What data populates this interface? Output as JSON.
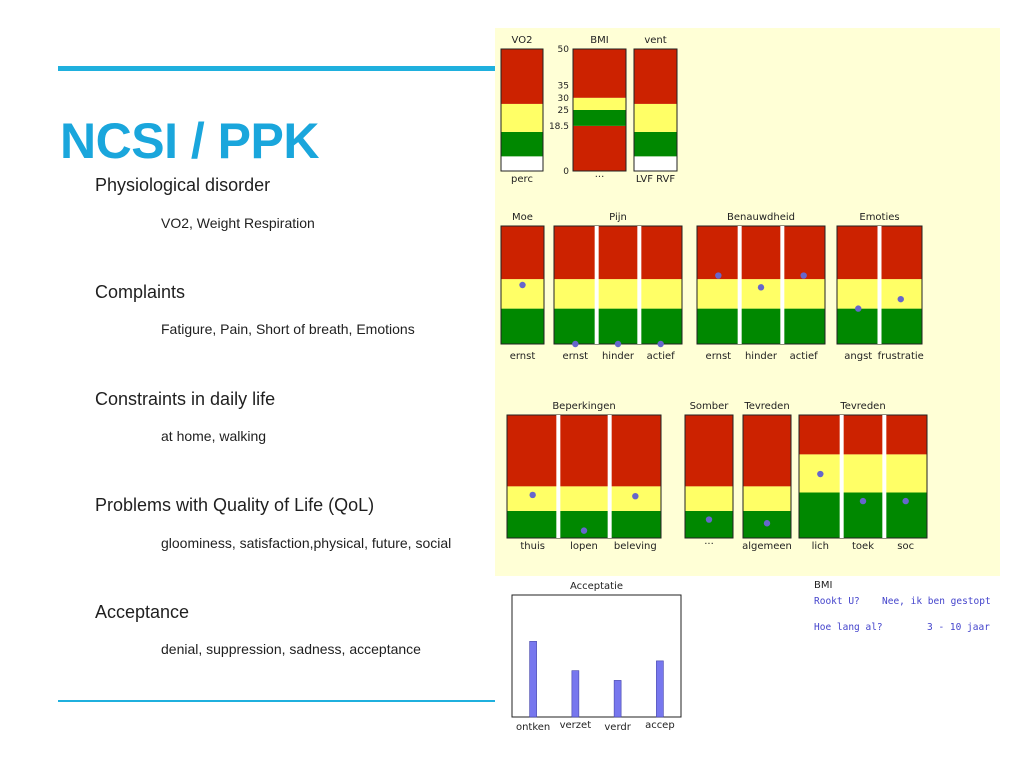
{
  "slide": {
    "title": "NCSI / PPK",
    "topics": [
      {
        "label": "Physiological disorder",
        "detail": "VO2, Weight Respiration"
      },
      {
        "label": "Complaints",
        "detail": "Fatigure, Pain, Short of breath, Emotions"
      },
      {
        "label": "Constraints in daily life",
        "detail": "at home, walking"
      },
      {
        "label": "Problems with Quality of Life (QoL)",
        "detail": "gloominess, satisfaction,physical, future, social"
      },
      {
        "label": "Acceptance",
        "detail": "denial, suppression, sadness, acceptance"
      }
    ]
  },
  "colors": {
    "red": "#cc2200",
    "yellow": "#ffff66",
    "green": "#008800",
    "dot": "#6666cc",
    "bar": "#7777ee"
  },
  "chart_data": [
    {
      "type": "gauge",
      "title": "VO2",
      "zones": [
        {
          "color": "white",
          "from": 0,
          "to": 0.12
        },
        {
          "color": "green",
          "from": 0.12,
          "to": 0.32
        },
        {
          "color": "yellow",
          "from": 0.32,
          "to": 0.55
        },
        {
          "color": "red",
          "from": 0.55,
          "to": 1
        }
      ],
      "columns": [
        {
          "label": "perc",
          "value": null
        }
      ]
    },
    {
      "type": "gauge",
      "title": "BMI",
      "ticks": [
        "50",
        "35",
        "30",
        "25",
        "18.5",
        "0"
      ],
      "zones": [
        {
          "color": "red",
          "from": 0,
          "to": 18.5
        },
        {
          "color": "green",
          "from": 18.5,
          "to": 25
        },
        {
          "color": "yellow",
          "from": 25,
          "to": 30
        },
        {
          "color": "red",
          "from": 30,
          "to": 50
        }
      ],
      "columns": [
        {
          "label": "...",
          "value": null
        }
      ]
    },
    {
      "type": "gauge",
      "title": "vent",
      "zones": [
        {
          "color": "white",
          "from": 0,
          "to": 0.12
        },
        {
          "color": "green",
          "from": 0.12,
          "to": 0.32
        },
        {
          "color": "yellow",
          "from": 0.32,
          "to": 0.55
        },
        {
          "color": "red",
          "from": 0.55,
          "to": 1
        }
      ],
      "columns": [
        {
          "label": "LVF RVF",
          "value": null
        }
      ]
    },
    {
      "type": "gauge",
      "title": "Moe",
      "zones": [
        {
          "color": "green",
          "from": 0,
          "to": 0.3
        },
        {
          "color": "yellow",
          "from": 0.3,
          "to": 0.55
        },
        {
          "color": "red",
          "from": 0.55,
          "to": 1
        }
      ],
      "columns": [
        {
          "label": "ernst",
          "value": 0.5
        }
      ]
    },
    {
      "type": "gauge",
      "title": "Pijn",
      "zones": [
        {
          "color": "green",
          "from": 0,
          "to": 0.3
        },
        {
          "color": "yellow",
          "from": 0.3,
          "to": 0.55
        },
        {
          "color": "red",
          "from": 0.55,
          "to": 1
        }
      ],
      "columns": [
        {
          "label": "ernst",
          "value": 0.0
        },
        {
          "label": "hinder",
          "value": 0.0
        },
        {
          "label": "actief",
          "value": 0.0
        }
      ]
    },
    {
      "type": "gauge",
      "title": "Benauwdheid",
      "zones": [
        {
          "color": "green",
          "from": 0,
          "to": 0.3
        },
        {
          "color": "yellow",
          "from": 0.3,
          "to": 0.55
        },
        {
          "color": "red",
          "from": 0.55,
          "to": 1
        }
      ],
      "columns": [
        {
          "label": "ernst",
          "value": 0.58
        },
        {
          "label": "hinder",
          "value": 0.48
        },
        {
          "label": "actief",
          "value": 0.58
        }
      ]
    },
    {
      "type": "gauge",
      "title": "Emoties",
      "zones": [
        {
          "color": "green",
          "from": 0,
          "to": 0.3
        },
        {
          "color": "yellow",
          "from": 0.3,
          "to": 0.55
        },
        {
          "color": "red",
          "from": 0.55,
          "to": 1
        }
      ],
      "columns": [
        {
          "label": "angst",
          "value": 0.3
        },
        {
          "label": "frustratie",
          "value": 0.38
        }
      ]
    },
    {
      "type": "gauge",
      "title": "Beperkingen",
      "zones": [
        {
          "color": "green",
          "from": 0,
          "to": 0.22
        },
        {
          "color": "yellow",
          "from": 0.22,
          "to": 0.42
        },
        {
          "color": "red",
          "from": 0.42,
          "to": 1
        }
      ],
      "columns": [
        {
          "label": "thuis",
          "value": 0.35
        },
        {
          "label": "lopen",
          "value": 0.06
        },
        {
          "label": "beleving",
          "value": 0.34
        }
      ]
    },
    {
      "type": "gauge",
      "title": "Somber",
      "zones": [
        {
          "color": "green",
          "from": 0,
          "to": 0.22
        },
        {
          "color": "yellow",
          "from": 0.22,
          "to": 0.42
        },
        {
          "color": "red",
          "from": 0.42,
          "to": 1
        }
      ],
      "columns": [
        {
          "label": "...",
          "value": 0.15
        }
      ]
    },
    {
      "type": "gauge",
      "title": "Tevreden",
      "zones": [
        {
          "color": "green",
          "from": 0,
          "to": 0.22
        },
        {
          "color": "yellow",
          "from": 0.22,
          "to": 0.42
        },
        {
          "color": "red",
          "from": 0.42,
          "to": 1
        }
      ],
      "columns": [
        {
          "label": "algemeen",
          "value": 0.12
        }
      ]
    },
    {
      "type": "gauge",
      "title": "Tevreden",
      "zones": [
        {
          "color": "green",
          "from": 0,
          "to": 0.37
        },
        {
          "color": "yellow",
          "from": 0.37,
          "to": 0.68
        },
        {
          "color": "red",
          "from": 0.68,
          "to": 1
        }
      ],
      "columns": [
        {
          "label": "lich",
          "value": 0.52
        },
        {
          "label": "toek",
          "value": 0.3
        },
        {
          "label": "soc",
          "value": 0.3
        }
      ]
    },
    {
      "type": "bar",
      "title": "Acceptatie",
      "categories": [
        "ontken",
        "verzet",
        "verdr",
        "accep"
      ],
      "values": [
        0.62,
        0.38,
        0.3,
        0.46
      ],
      "ylim": [
        0,
        1
      ]
    }
  ],
  "bmi_info": {
    "header": "BMI",
    "rows": [
      {
        "question": "Rookt U?",
        "answer": "Nee, ik ben gestopt"
      },
      {
        "question": "Hoe lang al?",
        "answer": "3 - 10 jaar"
      }
    ]
  }
}
